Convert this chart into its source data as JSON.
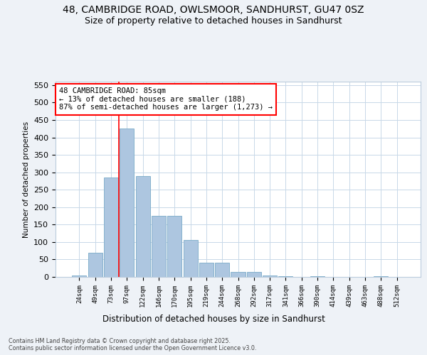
{
  "title_line1": "48, CAMBRIDGE ROAD, OWLSMOOR, SANDHURST, GU47 0SZ",
  "title_line2": "Size of property relative to detached houses in Sandhurst",
  "xlabel": "Distribution of detached houses by size in Sandhurst",
  "ylabel": "Number of detached properties",
  "categories": [
    "24sqm",
    "49sqm",
    "73sqm",
    "97sqm",
    "122sqm",
    "146sqm",
    "170sqm",
    "195sqm",
    "219sqm",
    "244sqm",
    "268sqm",
    "292sqm",
    "317sqm",
    "341sqm",
    "366sqm",
    "390sqm",
    "414sqm",
    "439sqm",
    "463sqm",
    "488sqm",
    "512sqm"
  ],
  "values": [
    5,
    70,
    285,
    425,
    290,
    175,
    175,
    105,
    40,
    40,
    15,
    15,
    5,
    2,
    1,
    2,
    1,
    1,
    1,
    3,
    1
  ],
  "bar_color": "#adc6e0",
  "bar_edge_color": "#7aaac8",
  "annotation_text": "48 CAMBRIDGE ROAD: 85sqm\n← 13% of detached houses are smaller (188)\n87% of semi-detached houses are larger (1,273) →",
  "vline_x": 2.5,
  "ylim": [
    0,
    560
  ],
  "yticks": [
    0,
    50,
    100,
    150,
    200,
    250,
    300,
    350,
    400,
    450,
    500,
    550
  ],
  "footer": "Contains HM Land Registry data © Crown copyright and database right 2025.\nContains public sector information licensed under the Open Government Licence v3.0.",
  "bg_color": "#eef2f7",
  "plot_bg_color": "#ffffff",
  "grid_color": "#c8d8e8"
}
